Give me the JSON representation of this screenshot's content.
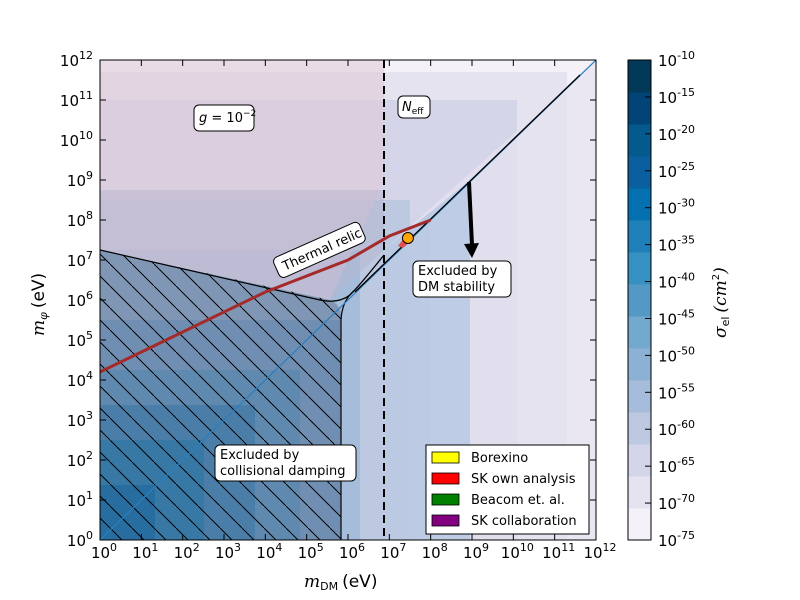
{
  "chart_data": {
    "type": "heatmap",
    "x": {
      "label_symbol": "m",
      "label_sub": "DM",
      "label_unit": "(eV)",
      "scale": "log",
      "range": [
        1,
        1000000000000.0
      ],
      "ticks": [
        [
          "10",
          "0"
        ],
        [
          "10",
          "1"
        ],
        [
          "10",
          "2"
        ],
        [
          "10",
          "3"
        ],
        [
          "10",
          "4"
        ],
        [
          "10",
          "5"
        ],
        [
          "10",
          "6"
        ],
        [
          "10",
          "7"
        ],
        [
          "10",
          "8"
        ],
        [
          "10",
          "9"
        ],
        [
          "10",
          "10"
        ],
        [
          "10",
          "11"
        ],
        [
          "10",
          "12"
        ]
      ]
    },
    "y": {
      "label_symbol": "m",
      "label_sub": "φ",
      "label_unit": "(eV)",
      "scale": "log",
      "range": [
        1,
        1000000000000.0
      ],
      "ticks": [
        [
          "10",
          "0"
        ],
        [
          "10",
          "1"
        ],
        [
          "10",
          "2"
        ],
        [
          "10",
          "3"
        ],
        [
          "10",
          "4"
        ],
        [
          "10",
          "5"
        ],
        [
          "10",
          "6"
        ],
        [
          "10",
          "7"
        ],
        [
          "10",
          "8"
        ],
        [
          "10",
          "9"
        ],
        [
          "10",
          "10"
        ],
        [
          "10",
          "11"
        ],
        [
          "10",
          "12"
        ]
      ]
    },
    "colorbar": {
      "label_symbol": "σ",
      "label_sub": "el",
      "label_unit": "(cm",
      "label_exp": "2",
      "label_close": ")",
      "ticks": [
        [
          "10",
          "-10"
        ],
        [
          "10",
          "-15"
        ],
        [
          "10",
          "-20"
        ],
        [
          "10",
          "-25"
        ],
        [
          "10",
          "-30"
        ],
        [
          "10",
          "-35"
        ],
        [
          "10",
          "-40"
        ],
        [
          "10",
          "-45"
        ],
        [
          "10",
          "-50"
        ],
        [
          "10",
          "-55"
        ],
        [
          "10",
          "-60"
        ],
        [
          "10",
          "-65"
        ],
        [
          "10",
          "-70"
        ],
        [
          "10",
          "-75"
        ]
      ],
      "colors": [
        "#f4f1f8",
        "#e6e3f0",
        "#d5d5e9",
        "#bdc8e1",
        "#a5bddb",
        "#8db1d5",
        "#74a9cf",
        "#5498c6",
        "#3690c0",
        "#1f7fb8",
        "#0570b0",
        "#0a5f9e",
        "#045a8d",
        "#034476",
        "#023858"
      ]
    },
    "regions": {
      "thermal_relic_label": "Thermal relic",
      "coupling_label_symbol": "g",
      "coupling_label_value": " = 10",
      "coupling_label_exp": "−2",
      "neff_symbol": "N",
      "neff_sub": "eff",
      "stability_label": [
        "Excluded by",
        "DM stability"
      ],
      "collisional_label": [
        "Excluded by",
        "collisional damping"
      ],
      "neff_boundary_log10_mdm": 6.85,
      "thermal_relic_curve_log10": [
        [
          0,
          4.2
        ],
        [
          2,
          5.2
        ],
        [
          4,
          6.2
        ],
        [
          6,
          7.0
        ],
        [
          7,
          7.6
        ],
        [
          8,
          8.0
        ]
      ],
      "benchmark_point_log10": [
        7.45,
        7.55
      ]
    },
    "legend": {
      "position": "lower-right",
      "entries": [
        {
          "label": "Borexino",
          "color": "#ffff00"
        },
        {
          "label": "SK own analysis",
          "color": "#ff0000"
        },
        {
          "label": "Beacom et. al.",
          "color": "#008000"
        },
        {
          "label": "SK collaboration",
          "color": "#800080"
        }
      ]
    }
  }
}
